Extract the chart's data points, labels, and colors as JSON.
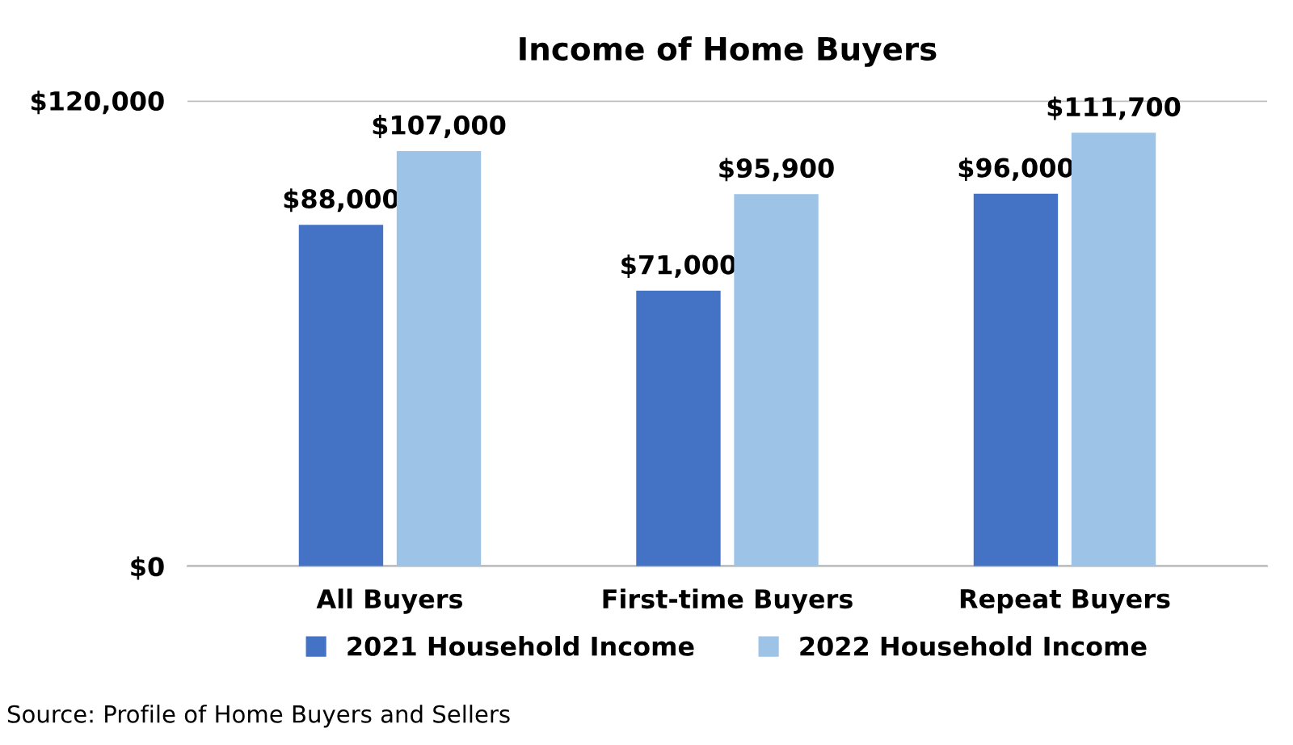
{
  "chart_data": {
    "type": "bar",
    "title": "Income of Home Buyers",
    "categories": [
      "All Buyers",
      "First-time Buyers",
      "Repeat Buyers"
    ],
    "series": [
      {
        "name": "2021 Household Income",
        "color": "#4472c4",
        "values": [
          88000,
          71000,
          96000
        ],
        "value_labels": [
          "$88,000",
          "$71,000",
          "$96,000"
        ]
      },
      {
        "name": "2022 Household Income",
        "color": "#9dc3e6",
        "values": [
          107000,
          95900,
          111700
        ],
        "value_labels": [
          "$107,000",
          "$95,900",
          "$111,700"
        ]
      }
    ],
    "ylim": [
      0,
      120000
    ],
    "yticks": [
      {
        "value": 0,
        "label": "$0"
      },
      {
        "value": 120000,
        "label": "$120,000"
      }
    ],
    "grid": "y",
    "legend": "bottom",
    "annotations": [
      "Source: Profile of Home Buyers and Sellers"
    ]
  }
}
